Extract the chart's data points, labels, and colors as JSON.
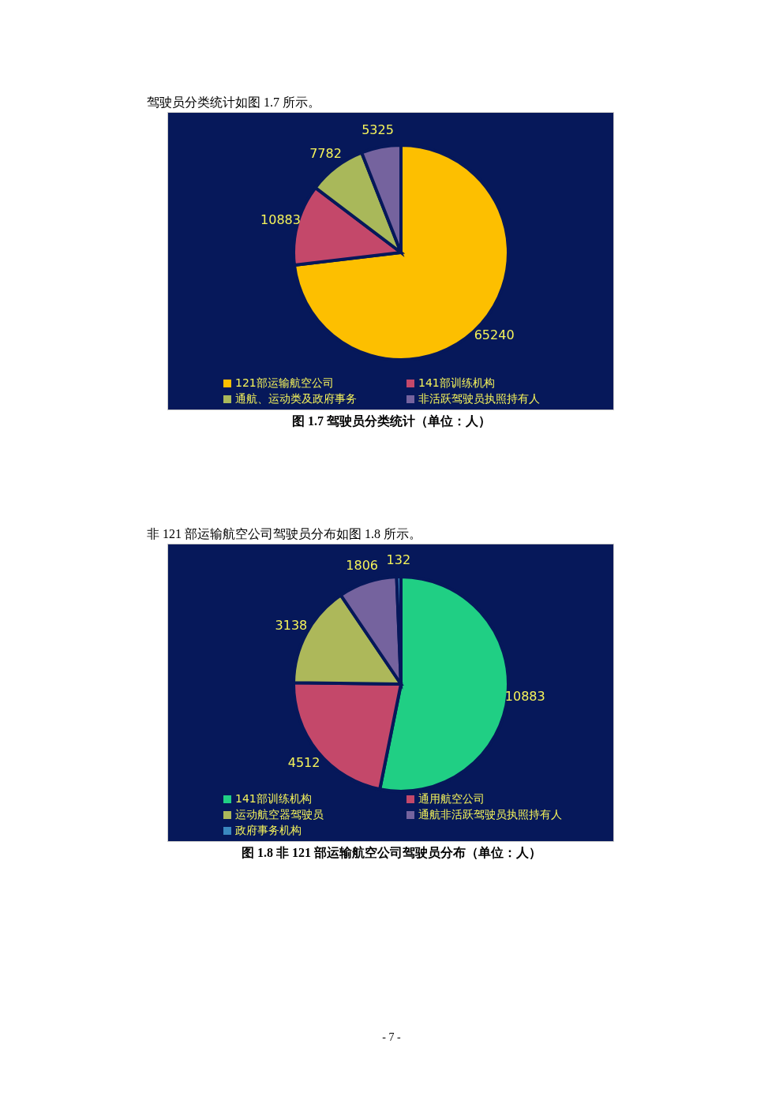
{
  "chart_data": [
    {
      "type": "pie",
      "title": "图 1.7  驾驶员分类统计（单位：人）",
      "annotations": [
        "驾驶员分类统计如图 1.7 所示。"
      ],
      "categories": [
        "121部运输航空公司",
        "141部训练机构",
        "通航、运动类及政府事务",
        "非活跃驾驶员执照持有人"
      ],
      "values": [
        65240,
        10883,
        7782,
        5325
      ],
      "colors": [
        "#fdbf00",
        "#c4486a",
        "#a9b85a",
        "#75639e"
      ],
      "data_labels": true,
      "legend": "bottom"
    },
    {
      "type": "pie",
      "title": "图 1.8  非 121 部运输航空公司驾驶员分布（单位：人）",
      "annotations": [
        "非 121 部运输航空公司驾驶员分布如图 1.8 所示。",
        "- 7 -"
      ],
      "categories": [
        "141部训练机构",
        "通用航空公司",
        "运动航空器驾驶员",
        "通航非活跃驾驶员执照持有人",
        "政府事务机构"
      ],
      "values": [
        10883,
        4512,
        3138,
        1806,
        132
      ],
      "colors": [
        "#20cf84",
        "#c4486a",
        "#adb85a",
        "#75639e",
        "#3a88c0"
      ],
      "data_labels": true,
      "legend": "bottom"
    }
  ]
}
